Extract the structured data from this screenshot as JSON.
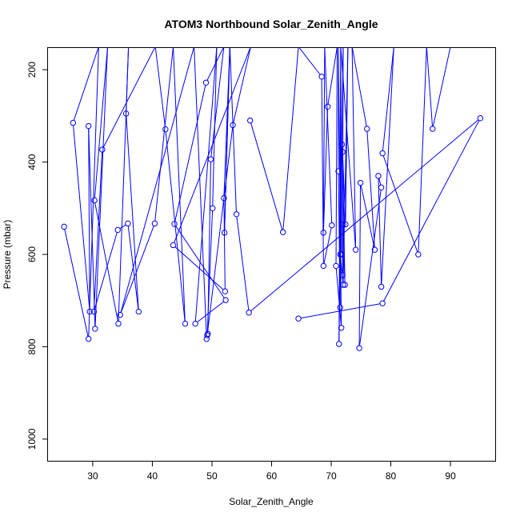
{
  "chart_data": {
    "type": "line",
    "title": "ATOM3 Northbound Solar_Zenith_Angle",
    "xlabel": "Solar_Zenith_Angle",
    "ylabel": "Pressure (mbar)",
    "xlim": [
      22.5,
      97.5
    ],
    "ylim": [
      1047,
      153
    ],
    "y_inverted": true,
    "xticks": [
      30,
      40,
      50,
      60,
      70,
      80,
      90
    ],
    "yticks": [
      200,
      400,
      600,
      800,
      1000
    ],
    "grid": false,
    "marker": "open-circle",
    "colors": {
      "series": "#0000ff",
      "axis": "#000000",
      "background": "#ffffff"
    },
    "series": [
      {
        "values": [
          [
            25.2,
            540
          ],
          [
            29.3,
            783
          ],
          [
            31.0,
            150
          ],
          [
            26.7,
            315
          ],
          [
            29.5,
            724
          ],
          [
            29.3,
            322
          ],
          [
            30.4,
            761
          ],
          [
            32.5,
            150
          ],
          [
            30.3,
            483
          ],
          [
            34.3,
            750
          ],
          [
            36.0,
            150
          ],
          [
            35.6,
            295
          ],
          [
            37.7,
            724
          ],
          [
            35.9,
            533
          ],
          [
            34.2,
            547
          ],
          [
            30.2,
            724
          ],
          [
            31.6,
            373
          ],
          [
            40.5,
            150
          ],
          [
            42.2,
            329
          ],
          [
            45.5,
            750
          ],
          [
            43.5,
            150
          ],
          [
            40.4,
            533
          ],
          [
            34.6,
            731
          ],
          [
            47.0,
            150
          ],
          [
            49.1,
            783
          ],
          [
            49.3,
            772
          ],
          [
            49.8,
            394
          ],
          [
            52.0,
            150
          ],
          [
            49.0,
            228
          ],
          [
            43.7,
            534
          ],
          [
            52.3,
            699
          ],
          [
            47.2,
            750
          ],
          [
            50.8,
            150
          ],
          [
            50.1,
            500
          ],
          [
            49.2,
            775
          ],
          [
            53.5,
            320
          ],
          [
            56.5,
            150
          ],
          [
            43.5,
            580
          ],
          [
            52.2,
            680
          ],
          [
            52.0,
            478
          ],
          [
            53.0,
            150
          ],
          [
            52.1,
            553
          ],
          [
            53.0,
            150
          ],
          [
            54.1,
            513
          ],
          [
            56.2,
            726
          ],
          [
            95.0,
            305
          ],
          [
            78.6,
            706
          ],
          [
            64.5,
            739
          ]
        ]
      },
      {
        "values": [
          [
            56.4,
            310
          ],
          [
            61.9,
            552
          ],
          [
            64.5,
            150
          ],
          [
            68.4,
            215
          ],
          [
            68.7,
            625
          ],
          [
            70.1,
            537
          ],
          [
            68.9,
            150
          ],
          [
            68.7,
            553
          ],
          [
            69.4,
            280
          ],
          [
            71.0,
            150
          ],
          [
            70.8,
            625
          ],
          [
            71.7,
            759
          ],
          [
            71.2,
            150
          ],
          [
            71.2,
            420
          ],
          [
            71.5,
            715
          ],
          [
            71.6,
            150
          ],
          [
            71.7,
            600
          ],
          [
            71.8,
            362
          ],
          [
            71.5,
            600
          ],
          [
            72.0,
            666
          ],
          [
            72.8,
            150
          ],
          [
            72.4,
            535
          ],
          [
            71.9,
            378
          ],
          [
            72.3,
            666
          ],
          [
            72.0,
            535
          ],
          [
            71.9,
            645
          ],
          [
            72.0,
            150
          ],
          [
            71.3,
            794
          ],
          [
            71.6,
            150
          ],
          [
            74.1,
            590
          ],
          [
            73.5,
            150
          ],
          [
            76.0,
            328
          ],
          [
            77.3,
            590
          ],
          [
            74.9,
            445
          ],
          [
            74.7,
            803
          ],
          [
            78.4,
            455
          ],
          [
            77.9,
            430
          ],
          [
            78.4,
            670
          ],
          [
            80.5,
            150
          ],
          [
            78.6,
            381
          ],
          [
            84.6,
            600
          ],
          [
            86.0,
            150
          ],
          [
            87.0,
            328
          ],
          [
            90.0,
            150
          ]
        ]
      }
    ]
  }
}
